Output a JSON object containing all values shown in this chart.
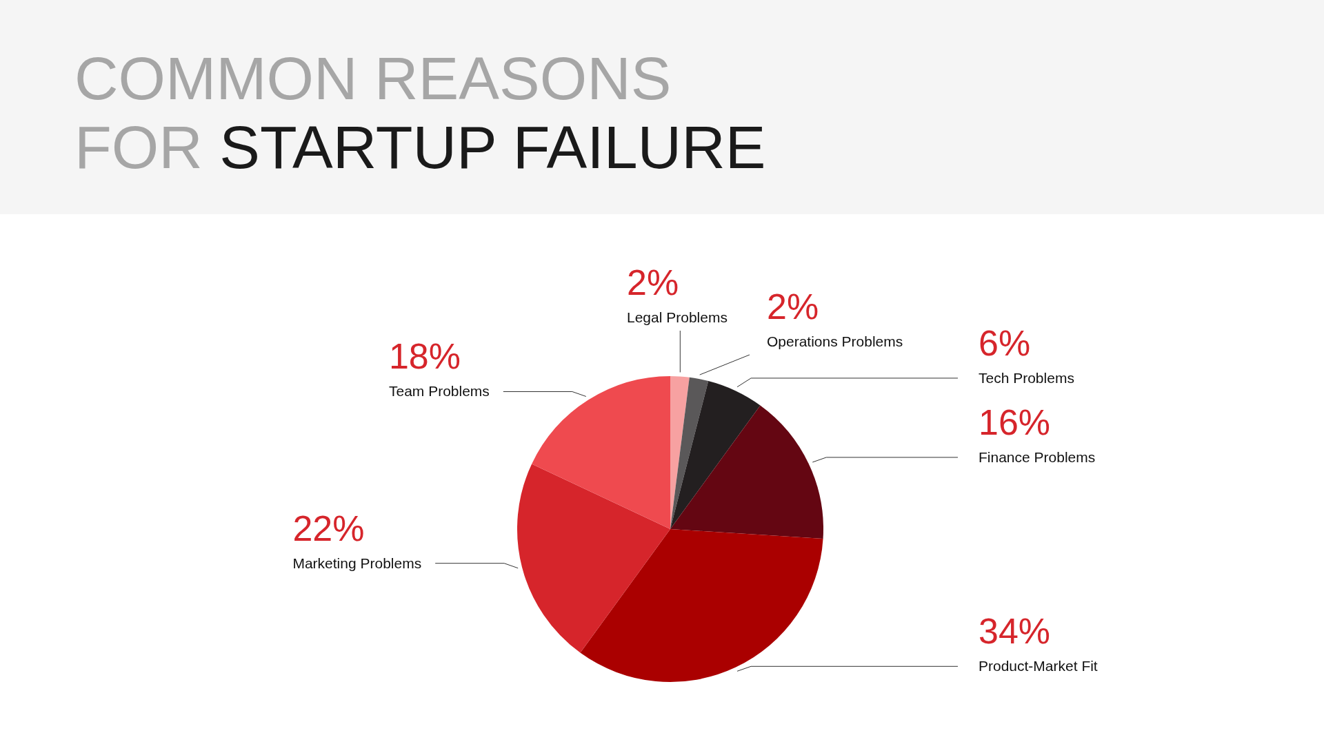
{
  "chart_data": {
    "type": "pie",
    "title": "COMMON REASONS FOR STARTUP FAILURE",
    "categories": [
      "Legal Problems",
      "Operations Problems",
      "Tech Problems",
      "Finance Problems",
      "Product-Market Fit",
      "Marketing Problems",
      "Team Problems"
    ],
    "values": [
      2,
      2,
      6,
      16,
      34,
      22,
      18
    ],
    "value_labels": [
      "2%",
      "2%",
      "6%",
      "16%",
      "34%",
      "22%",
      "18%"
    ],
    "colors": [
      "#f7a1a1",
      "#5a5859",
      "#231f20",
      "#640612",
      "#aa0000",
      "#d6252b",
      "#ef4a4f"
    ],
    "legend": false
  }
}
